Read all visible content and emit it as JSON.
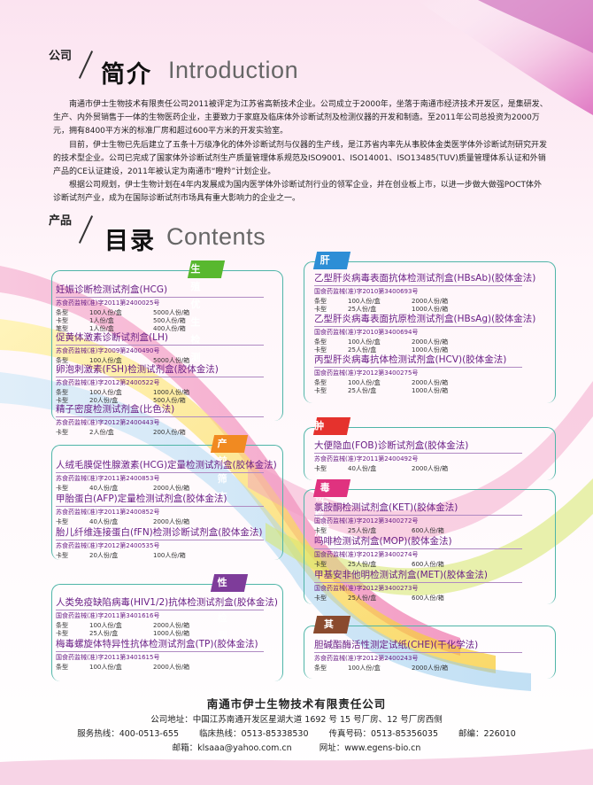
{
  "intro": {
    "small": "公司",
    "big": "简介",
    "en": "Introduction",
    "paragraphs": [
      "南通市伊士生物技术有限责任公司2011被评定为江苏省高新技术企业。公司成立于2000年，坐落于南通市经济技术开发区，是集研发、生产、内外贸销售于一体的生物医药企业，主要致力于家庭及临床体外诊断试剂及检测仪器的开发和制造。至2011年公司总投资为2000万元，拥有8400平方米的标准厂房和超过600平方米的开发实验室。",
      "目前，伊士生物已先后建立了五条十万级净化的体外诊断试剂与仪器的生产线，是江苏省内率先从事胶体金类医学体外诊断试剂研究开发的技术型企业。公司已完成了国家体外诊断试剂生产质量管理体系规范及ISO9001、ISO14001、ISO13485(TUV)质量管理体系认证和外销产品的CE认证建设，2011年被认定为南通市“瞪羚”计划企业。",
      "根据公司规划，伊士生物计划在4年内发展成为国内医学体外诊断试剂行业的领军企业，并在创业板上市，以进一步做大做强POCT体外诊断试剂产业，成为在国际诊断试剂市场具有重大影响力的企业之一。"
    ]
  },
  "catalog": {
    "small": "产品",
    "big": "目录",
    "en": "Contents"
  },
  "categories": {
    "fertility": {
      "title": "生殖优生检测",
      "products": [
        {
          "name": "妊娠诊断检测试剂盒(HCG)",
          "reg": "苏食药监械(准)字2011第2400025号",
          "specs": [
            [
              "条型",
              "100人份/盒",
              "5000人份/箱"
            ],
            [
              "卡型",
              "1人份/盒",
              "500人份/箱"
            ],
            [
              "笔型",
              "1人份/盒",
              "400人份/箱"
            ]
          ]
        },
        {
          "name": "促黄体激素诊断试剂盒(LH)",
          "reg": "苏食药监械(准)字2009第2400490号",
          "specs": [
            [
              "条型",
              "100人份/盒",
              "5000人份/箱"
            ]
          ]
        },
        {
          "name": "卵泡刺激素(FSH)检测试剂盒(胶体金法)",
          "reg": "苏食药监械(准)字2012第2400522号",
          "specs": [
            [
              "条型",
              "100人份/盒",
              "1000人份/箱"
            ],
            [
              "卡型",
              "20人份/盒",
              "500人份/箱"
            ]
          ]
        },
        {
          "name": "精子密度检测试剂盒(比色法)",
          "reg": "苏食药监械(准)字2012第2400443号",
          "specs": [
            [
              "卡型",
              "2人份/盒",
              "200人份/箱"
            ]
          ]
        }
      ]
    },
    "prenatal": {
      "title": "产前筛查",
      "products": [
        {
          "name": "人绒毛膜促性腺激素(HCG)定量检测试剂盒(胶体金法)",
          "reg": "苏食药监械(准)字2011第2400853号",
          "specs": [
            [
              "卡型",
              "40人份/盒",
              "2000人份/箱"
            ]
          ]
        },
        {
          "name": "甲胎蛋白(AFP)定量检测试剂盒(胶体金法)",
          "reg": "苏食药监械(准)字2011第2400852号",
          "specs": [
            [
              "卡型",
              "40人份/盒",
              "2000人份/箱"
            ]
          ]
        },
        {
          "name": "胎儿纤维连接蛋白(fFN)检测诊断试剂盒(胶体金法)",
          "reg": "苏食药监械(准)字2012第2400535号",
          "specs": [
            [
              "卡型",
              "20人份/盒",
              "100人份/箱"
            ]
          ]
        }
      ]
    },
    "std": {
      "title": "性病检测",
      "products": [
        {
          "name": "人类免疫缺陷病毒(HIV1/2)抗体检测试剂盒(胶体金法)",
          "reg": "国食药监械(准)字2011第3401616号",
          "specs": [
            [
              "条型",
              "100人份/盒",
              "2000人份/箱"
            ],
            [
              "卡型",
              "25人份/盒",
              "1000人份/箱"
            ]
          ]
        },
        {
          "name": "梅毒螺旋体特异性抗体检测试剂盒(TP)(胶体金法)",
          "reg": "国食药监械(准)字2011第3401615号",
          "specs": [
            [
              "条型",
              "100人份/盒",
              "2000人份/箱"
            ]
          ]
        }
      ]
    },
    "hepatitis": {
      "title": "肝炎检测",
      "products": [
        {
          "name": "乙型肝炎病毒表面抗体检测试剂盒(HBsAb)(胶体金法)",
          "reg": "国食药监械(准)字2010第3400693号",
          "specs": [
            [
              "条型",
              "100人份/盒",
              "2000人份/箱"
            ],
            [
              "卡型",
              "25人份/盒",
              "1000人份/箱"
            ]
          ]
        },
        {
          "name": "乙型肝炎病毒表面抗原检测试剂盒(HBsAg)(胶体金法)",
          "reg": "国食药监械(准)字2010第3400694号",
          "specs": [
            [
              "条型",
              "100人份/盒",
              "2000人份/箱"
            ],
            [
              "卡型",
              "25人份/盒",
              "1000人份/箱"
            ]
          ]
        },
        {
          "name": "丙型肝炎病毒抗体检测试剂盒(HCV)(胶体金法)",
          "reg": "国食药监械(准)字2012第3400275号",
          "specs": [
            [
              "条型",
              "100人份/盒",
              "2000人份/箱"
            ],
            [
              "卡型",
              "25人份/盒",
              "1000人份/箱"
            ]
          ]
        }
      ]
    },
    "tumor": {
      "title": "肿瘤标志物检测",
      "products": [
        {
          "name": "大便隐血(FOB)诊断试剂盒(胶体金法)",
          "reg": "苏食药监械(准)字2011第2400492号",
          "specs": [
            [
              "卡型",
              "40人份/盒",
              "2000人份/箱"
            ]
          ]
        }
      ]
    },
    "drugs": {
      "title": "毒品检测",
      "products": [
        {
          "name": "氯胺酮检测试剂盒(KET)(胶体金法)",
          "reg": "国食药监械(准)字2012第3400272号",
          "specs": [
            [
              "卡型",
              "25人份/盒",
              "600人份/箱"
            ]
          ]
        },
        {
          "name": "吗啡检测试剂盒(MOP)(胶体金法)",
          "reg": "国食药监械(准)字2012第3400274号",
          "specs": [
            [
              "卡型",
              "25人份/盒",
              "600人份/箱"
            ]
          ]
        },
        {
          "name": "甲基安非他明检测试剂盒(MET)(胶体金法)",
          "reg": "国食药监械(准)字2012第3400273号",
          "specs": [
            [
              "卡型",
              "25人份/盒",
              "600人份/箱"
            ]
          ]
        }
      ]
    },
    "other": {
      "title": "其他",
      "products": [
        {
          "name": "胆碱酯酶活性测定试纸(CHE)(干化学法)",
          "reg": "苏食药监械(准)字2012第2400243号",
          "specs": [
            [
              "条型",
              "100人份/盒",
              "2000人份/箱"
            ]
          ]
        }
      ]
    }
  },
  "footer": {
    "company": "南通市伊士生物技术有限责任公司",
    "address": "公司地址：中国江苏南通开发区星湖大道 1692 号 15 号厂房、12 号厂房西侧",
    "service": "服务热线：400-0513-655",
    "clinic": "临床热线：0513-85338530",
    "fax": "传真号码：0513-85356035",
    "postcode": "邮编：226010",
    "email": "邮箱：klsaaa@yahoo.com.cn",
    "website": "网址：www.egens-bio.cn"
  }
}
